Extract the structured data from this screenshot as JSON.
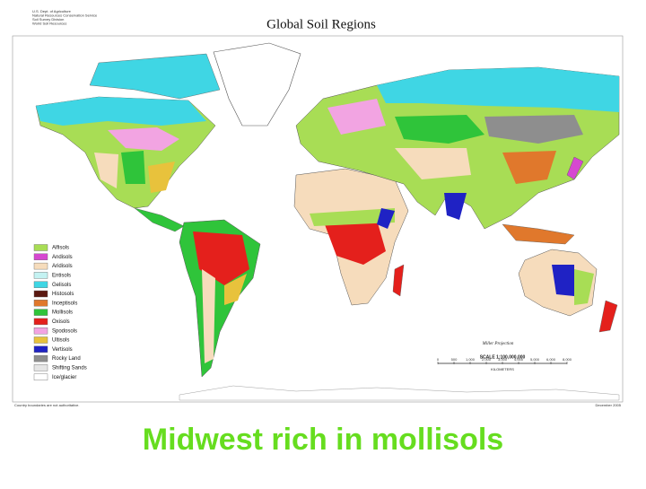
{
  "agency": [
    "U.S. Dept. of Agriculture",
    "Natural Resources Conservation Service",
    "Soil Survey Division",
    "World Soil Resources"
  ],
  "title": "Global Soil Regions",
  "legend": [
    {
      "name": "Alfisols",
      "color": "#a8dd55"
    },
    {
      "name": "Andisols",
      "color": "#d648d0"
    },
    {
      "name": "Aridisols",
      "color": "#f6dcbc"
    },
    {
      "name": "Entisols",
      "color": "#c4f2f2"
    },
    {
      "name": "Gelisols",
      "color": "#3fd6e4"
    },
    {
      "name": "Histosols",
      "color": "#5a1810"
    },
    {
      "name": "Inceptisols",
      "color": "#e0782c"
    },
    {
      "name": "Mollisols",
      "color": "#2fc43a"
    },
    {
      "name": "Oxisols",
      "color": "#e4201c"
    },
    {
      "name": "Spodosols",
      "color": "#f2a4e2"
    },
    {
      "name": "Ultisols",
      "color": "#e8c23c"
    },
    {
      "name": "Vertisols",
      "color": "#1f22c4"
    },
    {
      "name": "Rocky Land",
      "color": "#8e8e8e"
    },
    {
      "name": "Shifting Sands",
      "color": "#e6e6e6"
    },
    {
      "name": "Ice/glacier",
      "color": "#ffffff"
    }
  ],
  "projection": "Miller Projection",
  "scale": "SCALE 1:100,000,000",
  "scale_ticks": [
    "0",
    "500",
    "1,000",
    "2,000",
    "3,000",
    "4,000",
    "5,000",
    "6,000",
    "8,000"
  ],
  "scale_unit": "KILOMETERS",
  "footnote": "Country boundaries are not authoritative.",
  "date": "December 2005",
  "caption": "Midwest rich in mollisols"
}
